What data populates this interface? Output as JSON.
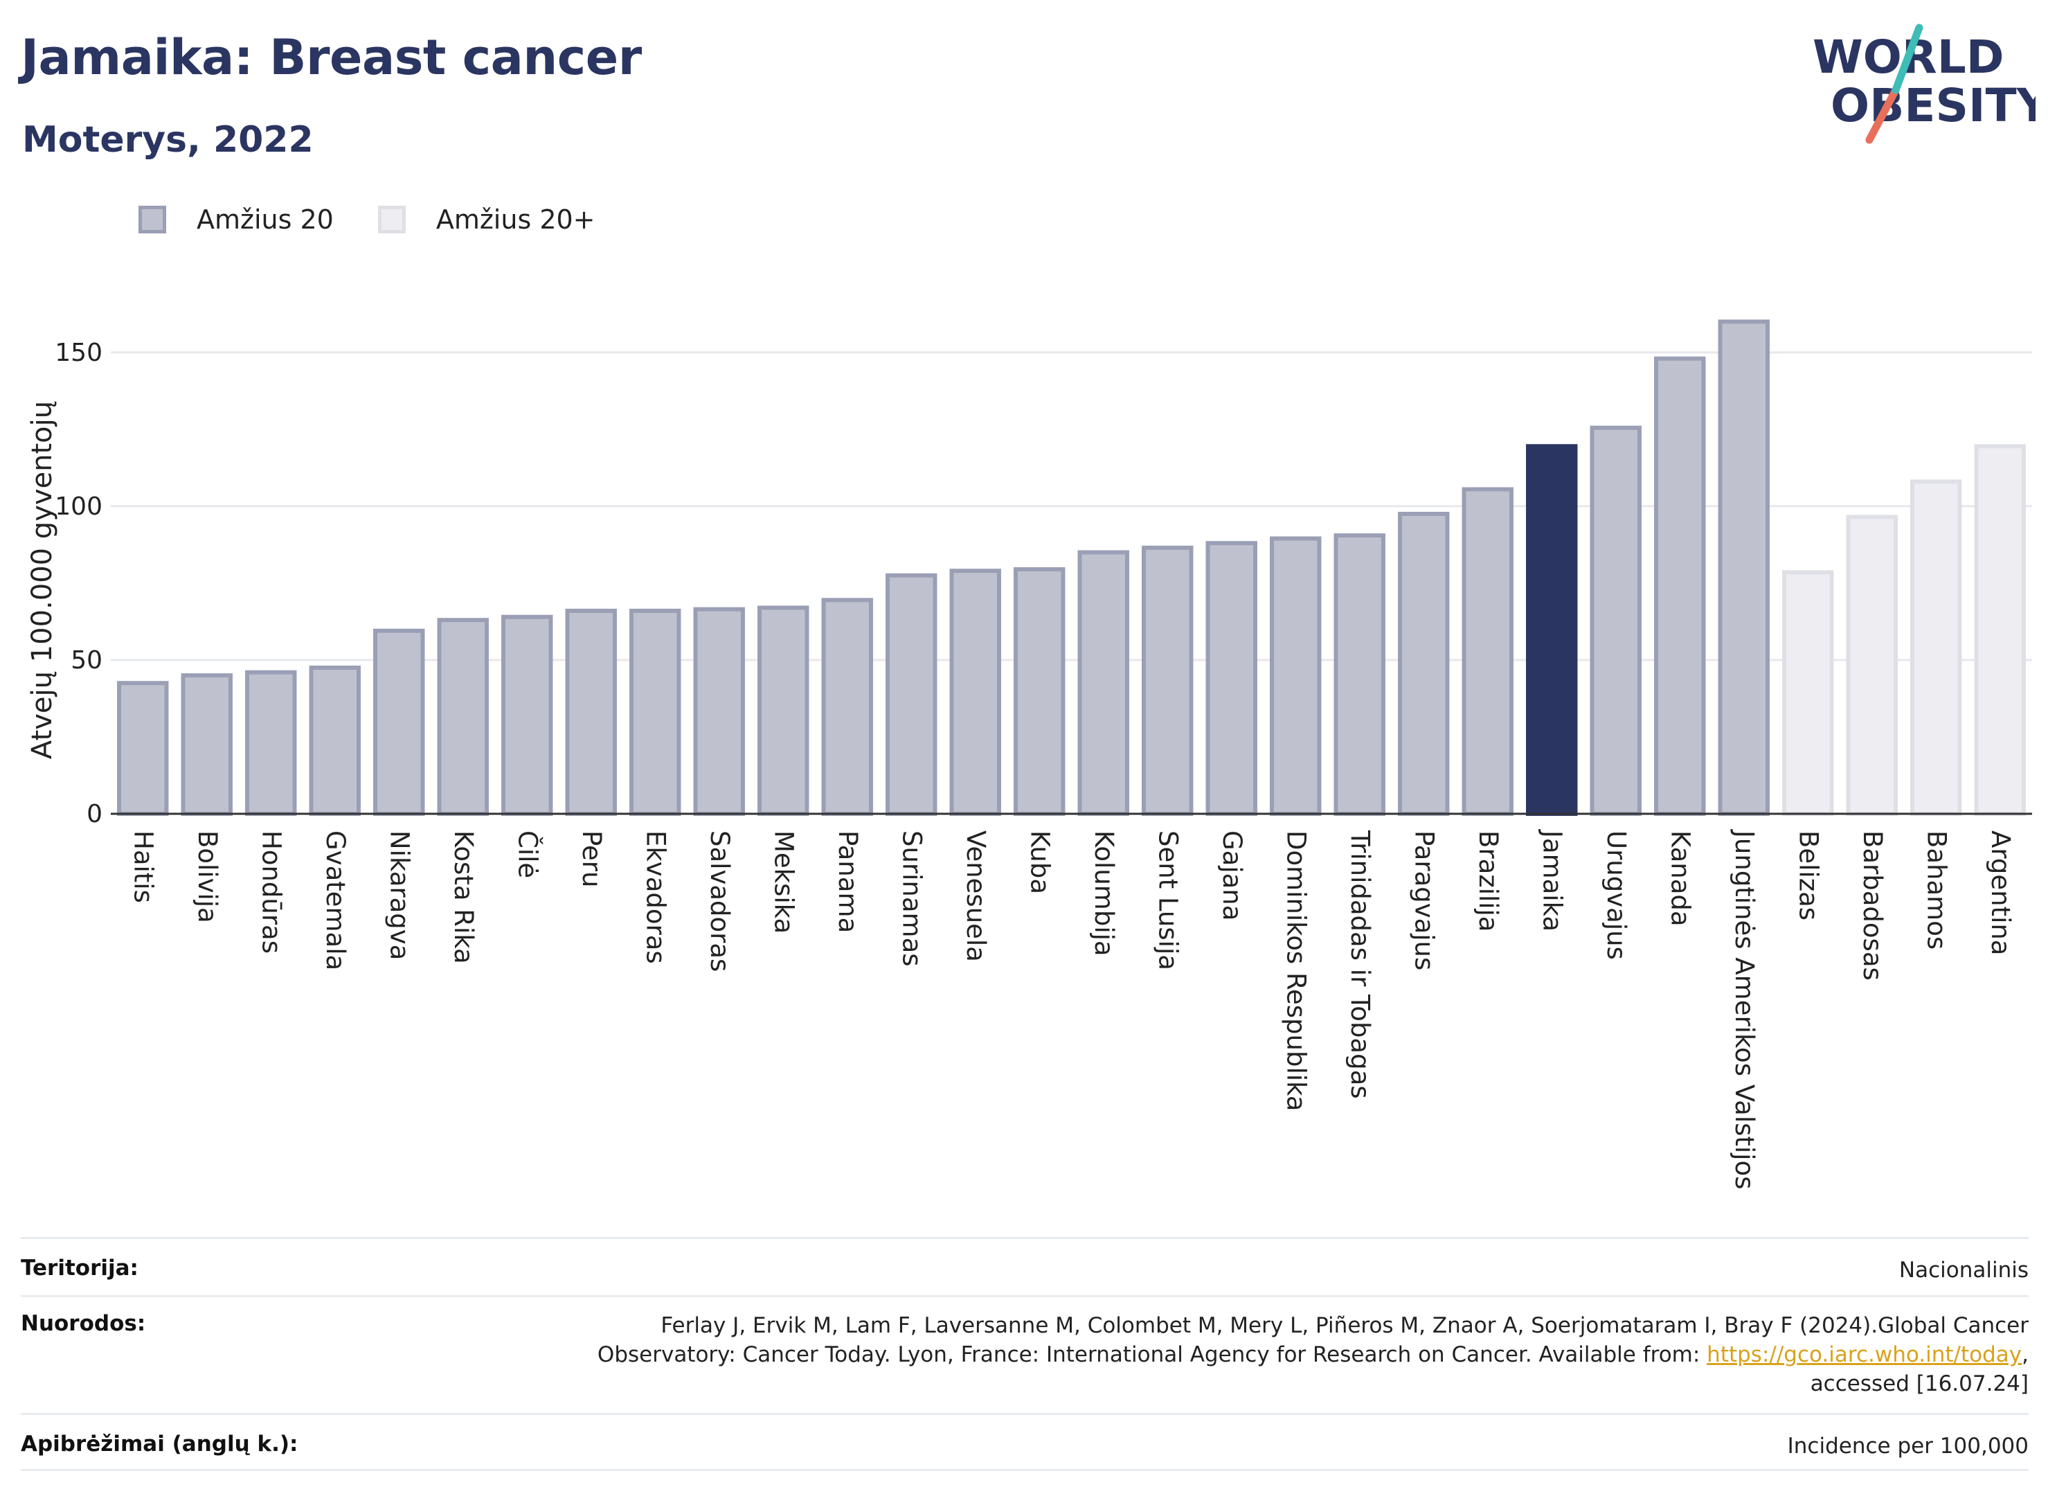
{
  "header": {
    "title": "Jamaika: Breast cancer",
    "subtitle": "Moterys, 2022"
  },
  "logo": {
    "line1": "WORLD",
    "line2": "OBESITY"
  },
  "legend": [
    {
      "label": "Amžius 20",
      "color": "#bfc2ce"
    },
    {
      "label": "Amžius 20+",
      "color": "#eeeef2"
    }
  ],
  "chart_data": {
    "type": "bar",
    "ylabel": "Atvejų 100.000 gyventojų",
    "ylim": [
      0,
      170
    ],
    "yticks": [
      0,
      50,
      100,
      150
    ],
    "grid": true,
    "legend_position": "top-left",
    "highlight": "Jamaika",
    "colors": {
      "age20": "#bfc2ce",
      "age20plus": "#eeeef2",
      "highlight": "#2b3561"
    },
    "categories": [
      "Haitis",
      "Bolivija",
      "Hondūras",
      "Gvatemala",
      "Nikaragva",
      "Kosta Rika",
      "Čilė",
      "Peru",
      "Ekvadoras",
      "Salvadoras",
      "Meksika",
      "Panama",
      "Surinamas",
      "Venesuela",
      "Kuba",
      "Kolumbija",
      "Sent Lusija",
      "Gajana",
      "Dominikos Respublika",
      "Trinidadas ir Tobagas",
      "Paragvajus",
      "Brazilija",
      "Jamaika",
      "Urugvajus",
      "Kanada",
      "Jungtinės Amerikos Valstijos",
      "Belizas",
      "Barbadosas",
      "Bahamos",
      "Argentina"
    ],
    "values": [
      42.5,
      45,
      46,
      47.5,
      59.5,
      63,
      64,
      66,
      66,
      66.5,
      67,
      69.5,
      77.5,
      79,
      79.5,
      85,
      86.5,
      88,
      89.5,
      90.5,
      97.5,
      105.5,
      119.5,
      125.5,
      148,
      160,
      78.5,
      96.5,
      108,
      119.5
    ],
    "series_group": [
      "Amžius 20",
      "Amžius 20",
      "Amžius 20",
      "Amžius 20",
      "Amžius 20",
      "Amžius 20",
      "Amžius 20",
      "Amžius 20",
      "Amžius 20",
      "Amžius 20",
      "Amžius 20",
      "Amžius 20",
      "Amžius 20",
      "Amžius 20",
      "Amžius 20",
      "Amžius 20",
      "Amžius 20",
      "Amžius 20",
      "Amžius 20",
      "Amžius 20",
      "Amžius 20",
      "Amžius 20",
      "Amžius 20",
      "Amžius 20",
      "Amžius 20",
      "Amžius 20",
      "Amžius 20+",
      "Amžius 20+",
      "Amžius 20+",
      "Amžius 20+"
    ]
  },
  "footer": {
    "territory_label": "Teritorija:",
    "territory_value": "Nacionalinis",
    "references_label": "Nuorodos:",
    "references_line1": "Ferlay J, Ervik M, Lam F, Laversanne M, Colombet M, Mery L, Piñeros M, Znaor A, Soerjomataram I, Bray F (2024).Global Cancer",
    "references_line2_pre": "Observatory: Cancer Today. Lyon, France: International Agency for Research on Cancer. Available from: ",
    "references_link": "https://gco.iarc.who.int/today",
    "references_line2_post": ",",
    "references_line3": "accessed [16.07.24]",
    "definitions_label": "Apibrėžimai (anglų k.):",
    "definitions_value": "Incidence per 100,000"
  }
}
